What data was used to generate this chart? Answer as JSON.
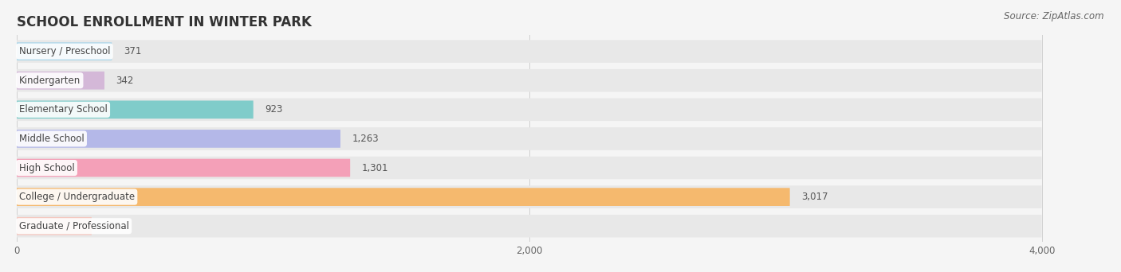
{
  "title": "SCHOOL ENROLLMENT IN WINTER PARK",
  "source": "Source: ZipAtlas.com",
  "categories": [
    "Nursery / Preschool",
    "Kindergarten",
    "Elementary School",
    "Middle School",
    "High School",
    "College / Undergraduate",
    "Graduate / Professional"
  ],
  "values": [
    371,
    342,
    923,
    1263,
    1301,
    3017,
    292
  ],
  "colors": [
    "#acd6ea",
    "#d4b8d8",
    "#80ccca",
    "#b4b8e8",
    "#f4a0b8",
    "#f5b96e",
    "#f4c8c0"
  ],
  "xlim": [
    0,
    4200
  ],
  "xticks": [
    0,
    2000,
    4000
  ],
  "xtick_labels": [
    "0",
    "2,000",
    "4,000"
  ],
  "background_color": "#f5f5f5",
  "bar_bg_color": "#e8e8e8",
  "title_fontsize": 12,
  "label_fontsize": 8.5,
  "value_fontsize": 8.5,
  "source_fontsize": 8.5
}
